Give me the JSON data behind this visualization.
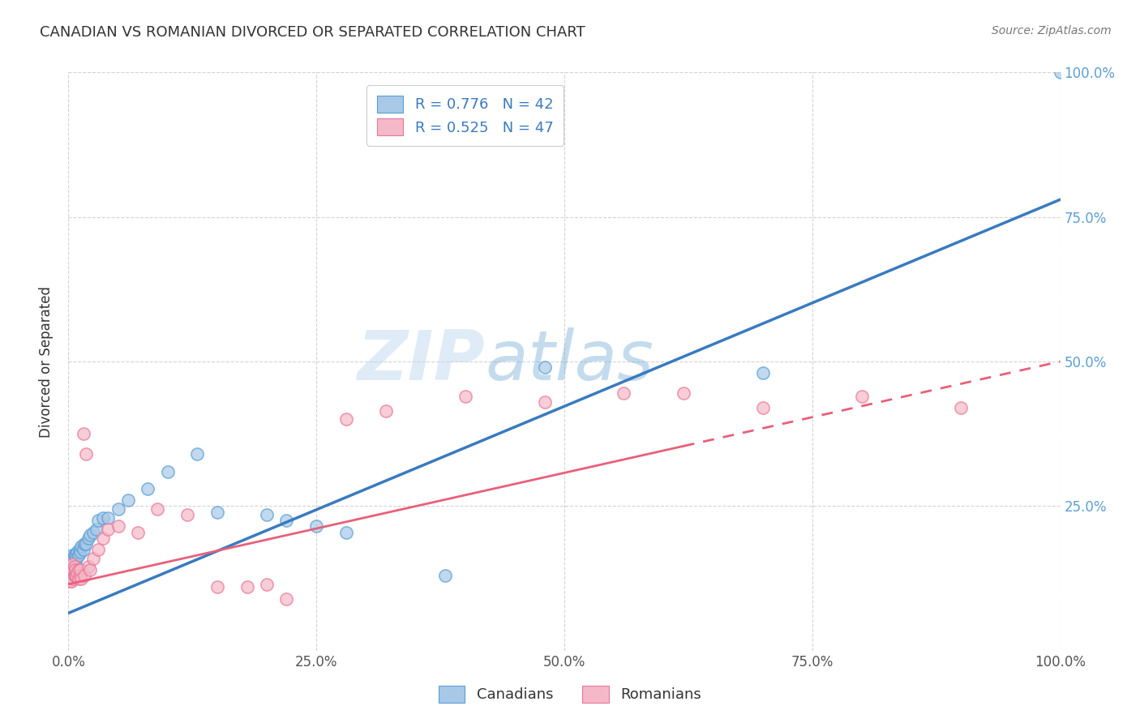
{
  "title": "CANADIAN VS ROMANIAN DIVORCED OR SEPARATED CORRELATION CHART",
  "source_text": "Source: ZipAtlas.com",
  "ylabel": "Divorced or Separated",
  "watermark_zip": "ZIP",
  "watermark_atlas": "atlas",
  "legend_canadian": "R = 0.776   N = 42",
  "legend_romanian": "R = 0.525   N = 47",
  "canadian_color_fill": "#a8c8e8",
  "canadian_color_edge": "#5a9fd4",
  "romanian_color_fill": "#f5b8c8",
  "romanian_color_edge": "#e87898",
  "canadian_line_color": "#3a7abf",
  "romanian_line_color": "#e8607a",
  "legend_patch_canadian": "#a8c8e8",
  "legend_patch_romanian": "#f5b8c8",
  "right_tick_color": "#5a9fd4",
  "canadian_scatter_x": [
    0.001,
    0.002,
    0.003,
    0.003,
    0.004,
    0.004,
    0.005,
    0.005,
    0.006,
    0.006,
    0.007,
    0.007,
    0.008,
    0.009,
    0.01,
    0.011,
    0.012,
    0.013,
    0.015,
    0.016,
    0.018,
    0.02,
    0.022,
    0.025,
    0.028,
    0.03,
    0.035,
    0.04,
    0.05,
    0.06,
    0.08,
    0.1,
    0.13,
    0.15,
    0.2,
    0.22,
    0.25,
    0.28,
    0.38,
    0.48,
    0.7,
    1.0
  ],
  "canadian_scatter_y": [
    0.13,
    0.14,
    0.14,
    0.155,
    0.15,
    0.165,
    0.155,
    0.16,
    0.15,
    0.165,
    0.155,
    0.165,
    0.16,
    0.17,
    0.165,
    0.175,
    0.17,
    0.18,
    0.175,
    0.185,
    0.185,
    0.195,
    0.2,
    0.205,
    0.21,
    0.225,
    0.23,
    0.23,
    0.245,
    0.26,
    0.28,
    0.31,
    0.34,
    0.24,
    0.235,
    0.225,
    0.215,
    0.205,
    0.13,
    0.49,
    0.48,
    1.0
  ],
  "romanian_scatter_x": [
    0.001,
    0.001,
    0.002,
    0.002,
    0.003,
    0.003,
    0.004,
    0.004,
    0.005,
    0.005,
    0.006,
    0.006,
    0.007,
    0.007,
    0.008,
    0.009,
    0.01,
    0.01,
    0.012,
    0.012,
    0.013,
    0.015,
    0.016,
    0.018,
    0.02,
    0.022,
    0.025,
    0.03,
    0.035,
    0.04,
    0.05,
    0.07,
    0.09,
    0.12,
    0.15,
    0.18,
    0.2,
    0.22,
    0.28,
    0.32,
    0.4,
    0.48,
    0.56,
    0.62,
    0.7,
    0.8,
    0.9
  ],
  "romanian_scatter_y": [
    0.13,
    0.145,
    0.12,
    0.135,
    0.12,
    0.14,
    0.135,
    0.15,
    0.125,
    0.14,
    0.13,
    0.145,
    0.13,
    0.14,
    0.13,
    0.135,
    0.125,
    0.14,
    0.13,
    0.14,
    0.125,
    0.375,
    0.13,
    0.34,
    0.145,
    0.14,
    0.16,
    0.175,
    0.195,
    0.21,
    0.215,
    0.205,
    0.245,
    0.235,
    0.11,
    0.11,
    0.115,
    0.09,
    0.4,
    0.415,
    0.44,
    0.43,
    0.445,
    0.445,
    0.42,
    0.44,
    0.42
  ],
  "can_line_x0": 0.0,
  "can_line_y0": 0.065,
  "can_line_x1": 1.0,
  "can_line_y1": 0.78,
  "rom_line_x0": 0.0,
  "rom_line_y0": 0.115,
  "rom_line_x1": 1.0,
  "rom_line_y1": 0.5,
  "xlim": [
    0.0,
    1.0
  ],
  "ylim": [
    0.0,
    1.0
  ],
  "xtick_vals": [
    0.0,
    0.25,
    0.5,
    0.75,
    1.0
  ],
  "xtick_labels": [
    "0.0%",
    "25.0%",
    "50.0%",
    "75.0%",
    "100.0%"
  ],
  "ytick_vals": [
    0.0,
    0.25,
    0.5,
    0.75,
    1.0
  ],
  "ytick_labels_right": [
    "",
    "25.0%",
    "50.0%",
    "75.0%",
    "100.0%"
  ],
  "bottom_labels": [
    "Canadians",
    "Romanians"
  ],
  "background_color": "#ffffff",
  "grid_color": "#c8c8c8"
}
